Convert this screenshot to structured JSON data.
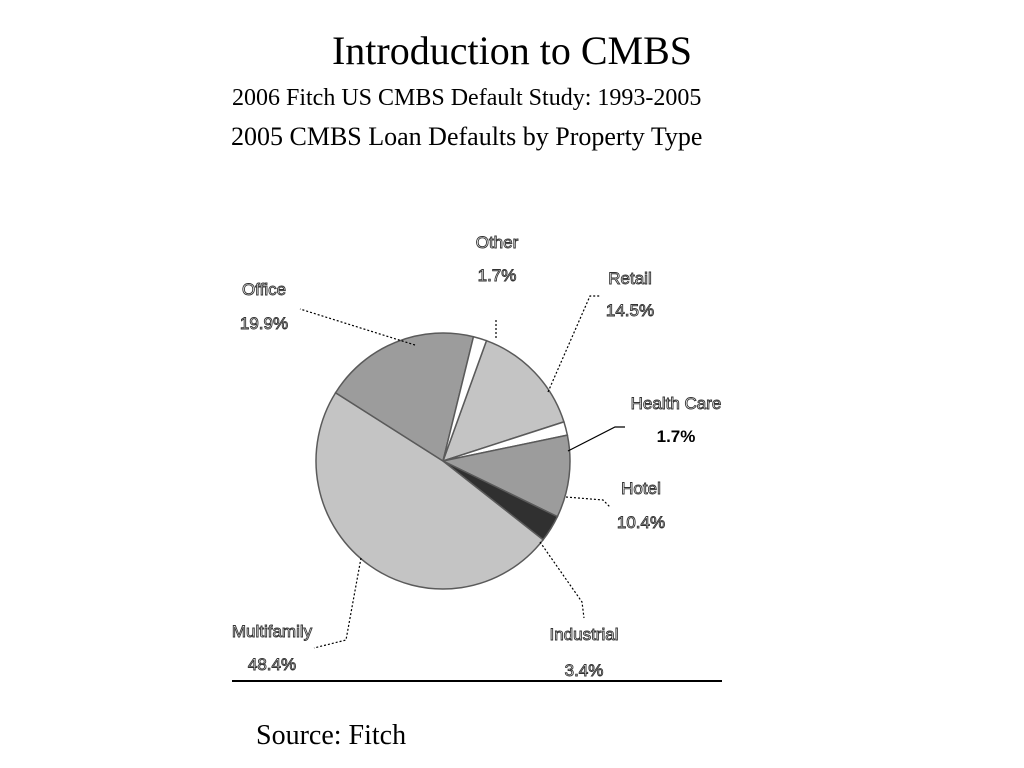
{
  "title": "Introduction to CMBS",
  "subtitle": "2006 Fitch US CMBS Default Study: 1993-2005",
  "source": "Source: Fitch",
  "chart_data": {
    "type": "pie",
    "title": "2005 CMBS Loan Defaults by Property Type",
    "slices": [
      {
        "label": "Retail",
        "value": 14.5,
        "value_label": "14.5%",
        "color": "#c4c4c4"
      },
      {
        "label": "Health Care",
        "value": 1.7,
        "value_label": "1.7%",
        "color": "#ffffff"
      },
      {
        "label": "Hotel",
        "value": 10.4,
        "value_label": "10.4%",
        "color": "#9c9c9c"
      },
      {
        "label": "Industrial",
        "value": 3.4,
        "value_label": "3.4%",
        "color": "#303030"
      },
      {
        "label": "Multifamily",
        "value": 48.4,
        "value_label": "48.4%",
        "color": "#c4c4c4"
      },
      {
        "label": "Office",
        "value": 19.9,
        "value_label": "19.9%",
        "color": "#9c9c9c"
      },
      {
        "label": "Other",
        "value": 1.7,
        "value_label": "1.7%",
        "color": "#ffffff"
      }
    ]
  }
}
